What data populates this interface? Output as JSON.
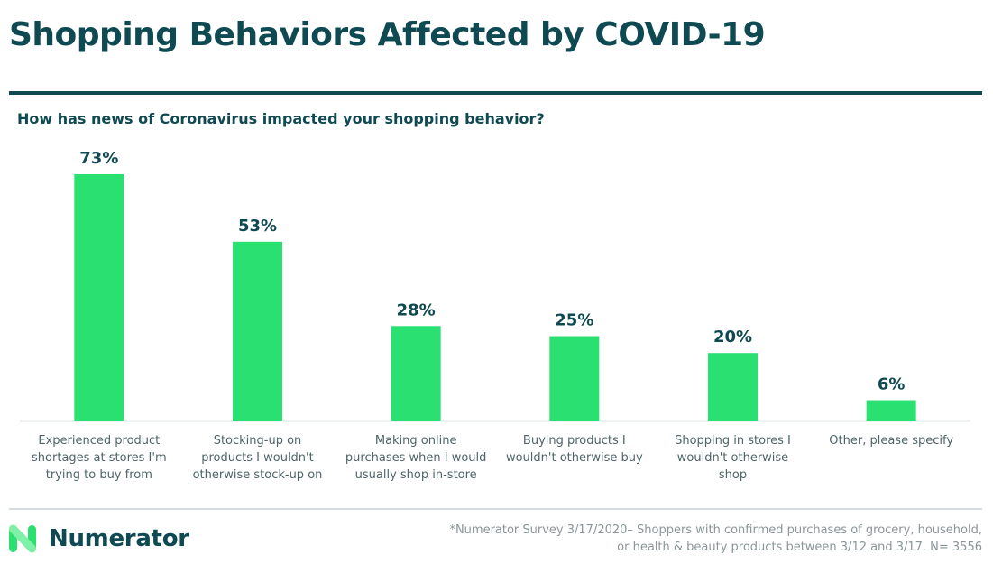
{
  "header": {
    "title": "Shopping Behaviors Affected by COVID-19",
    "subtitle": "How has news of Coronavirus impacted your shopping behavior?"
  },
  "colors": {
    "bar": "#2ae070",
    "text_dark": "#0f4a52",
    "category_text": "#4e6468",
    "baseline": "#e1e4e5"
  },
  "chart_data": {
    "type": "bar",
    "title": "How has news of Coronavirus impacted your shopping behavior?",
    "xlabel": "",
    "ylabel": "",
    "ylim": [
      0,
      73
    ],
    "grid": false,
    "legend": "none",
    "categories": [
      [
        "Experienced product",
        "shortages at stores I'm",
        "trying to buy from"
      ],
      [
        "Stocking-up on",
        "products I wouldn't",
        "otherwise stock-up on"
      ],
      [
        "Making online",
        "purchases when I would",
        "usually shop in-store"
      ],
      [
        "Buying products I",
        "wouldn't otherwise buy"
      ],
      [
        "Shopping in stores I",
        "wouldn't otherwise",
        "shop"
      ],
      [
        "Other, please specify"
      ]
    ],
    "values": [
      73,
      53,
      28,
      25,
      20,
      6
    ],
    "value_labels": [
      "73%",
      "53%",
      "28%",
      "25%",
      "20%",
      "6%"
    ],
    "unit": "%"
  },
  "footer": {
    "brand": "Numerator",
    "logo_icon": "numerator-n-logo-icon",
    "footnote_line1": "*Numerator Survey 3/17/2020–  Shoppers with confirmed purchases of grocery, household,",
    "footnote_line2": "or health & beauty products between 3/12 and 3/17. N= 3556"
  }
}
